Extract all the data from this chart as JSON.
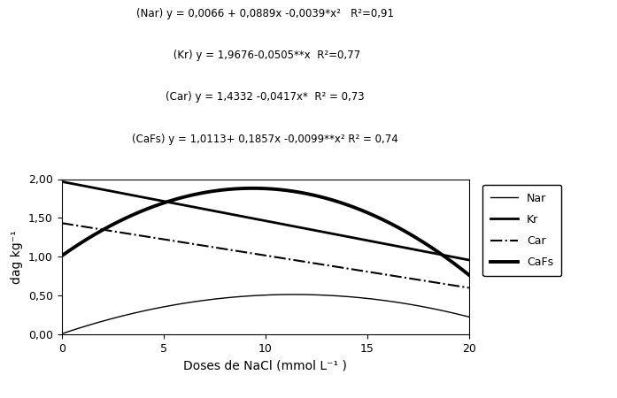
{
  "equations": [
    "(Nar) y = 0,0066 + 0,0889x -0,0039*x²   R²=0,91",
    " (Kr) y = 1,9676-0,0505**x  R²=0,77",
    "(Car) y = 1,4332 -0,0417x*  R² = 0,73",
    "(CaFs) y = 1,0113+ 0,1857x -0,0099**x² R² = 0,74"
  ],
  "xlabel": "Doses de NaCl (mmol L⁻¹ )",
  "ylabel": "dag kg⁻¹",
  "xlim": [
    0,
    20
  ],
  "ylim": [
    0,
    2.0
  ],
  "yticks": [
    0.0,
    0.5,
    1.0,
    1.5,
    2.0
  ],
  "xticks": [
    0,
    5,
    10,
    15,
    20
  ],
  "ytick_labels": [
    "0,00",
    "0,50",
    "1,00",
    "1,50",
    "2,00"
  ],
  "xtick_labels": [
    "0",
    "5",
    "10",
    "15",
    "20"
  ],
  "series": {
    "Nar": {
      "a": 0.0066,
      "b": 0.0889,
      "c": -0.0039,
      "linestyle": "-",
      "linewidth": 1.0,
      "color": "#000000"
    },
    "Kr": {
      "a": 1.9676,
      "b": -0.0505,
      "c": 0,
      "linestyle": "-",
      "linewidth": 2.0,
      "color": "#000000"
    },
    "Car": {
      "a": 1.4332,
      "b": -0.0417,
      "c": 0,
      "linestyle": "-.",
      "linewidth": 1.5,
      "color": "#000000"
    },
    "CaFs": {
      "a": 1.0113,
      "b": 0.1857,
      "c": -0.0099,
      "linestyle": "-",
      "linewidth": 2.8,
      "color": "#000000"
    }
  },
  "legend_labels": [
    "Nar",
    "Kr",
    "Car",
    "CaFs"
  ],
  "eq_fontsize": 8.5,
  "axis_label_fontsize": 10,
  "tick_fontsize": 9
}
